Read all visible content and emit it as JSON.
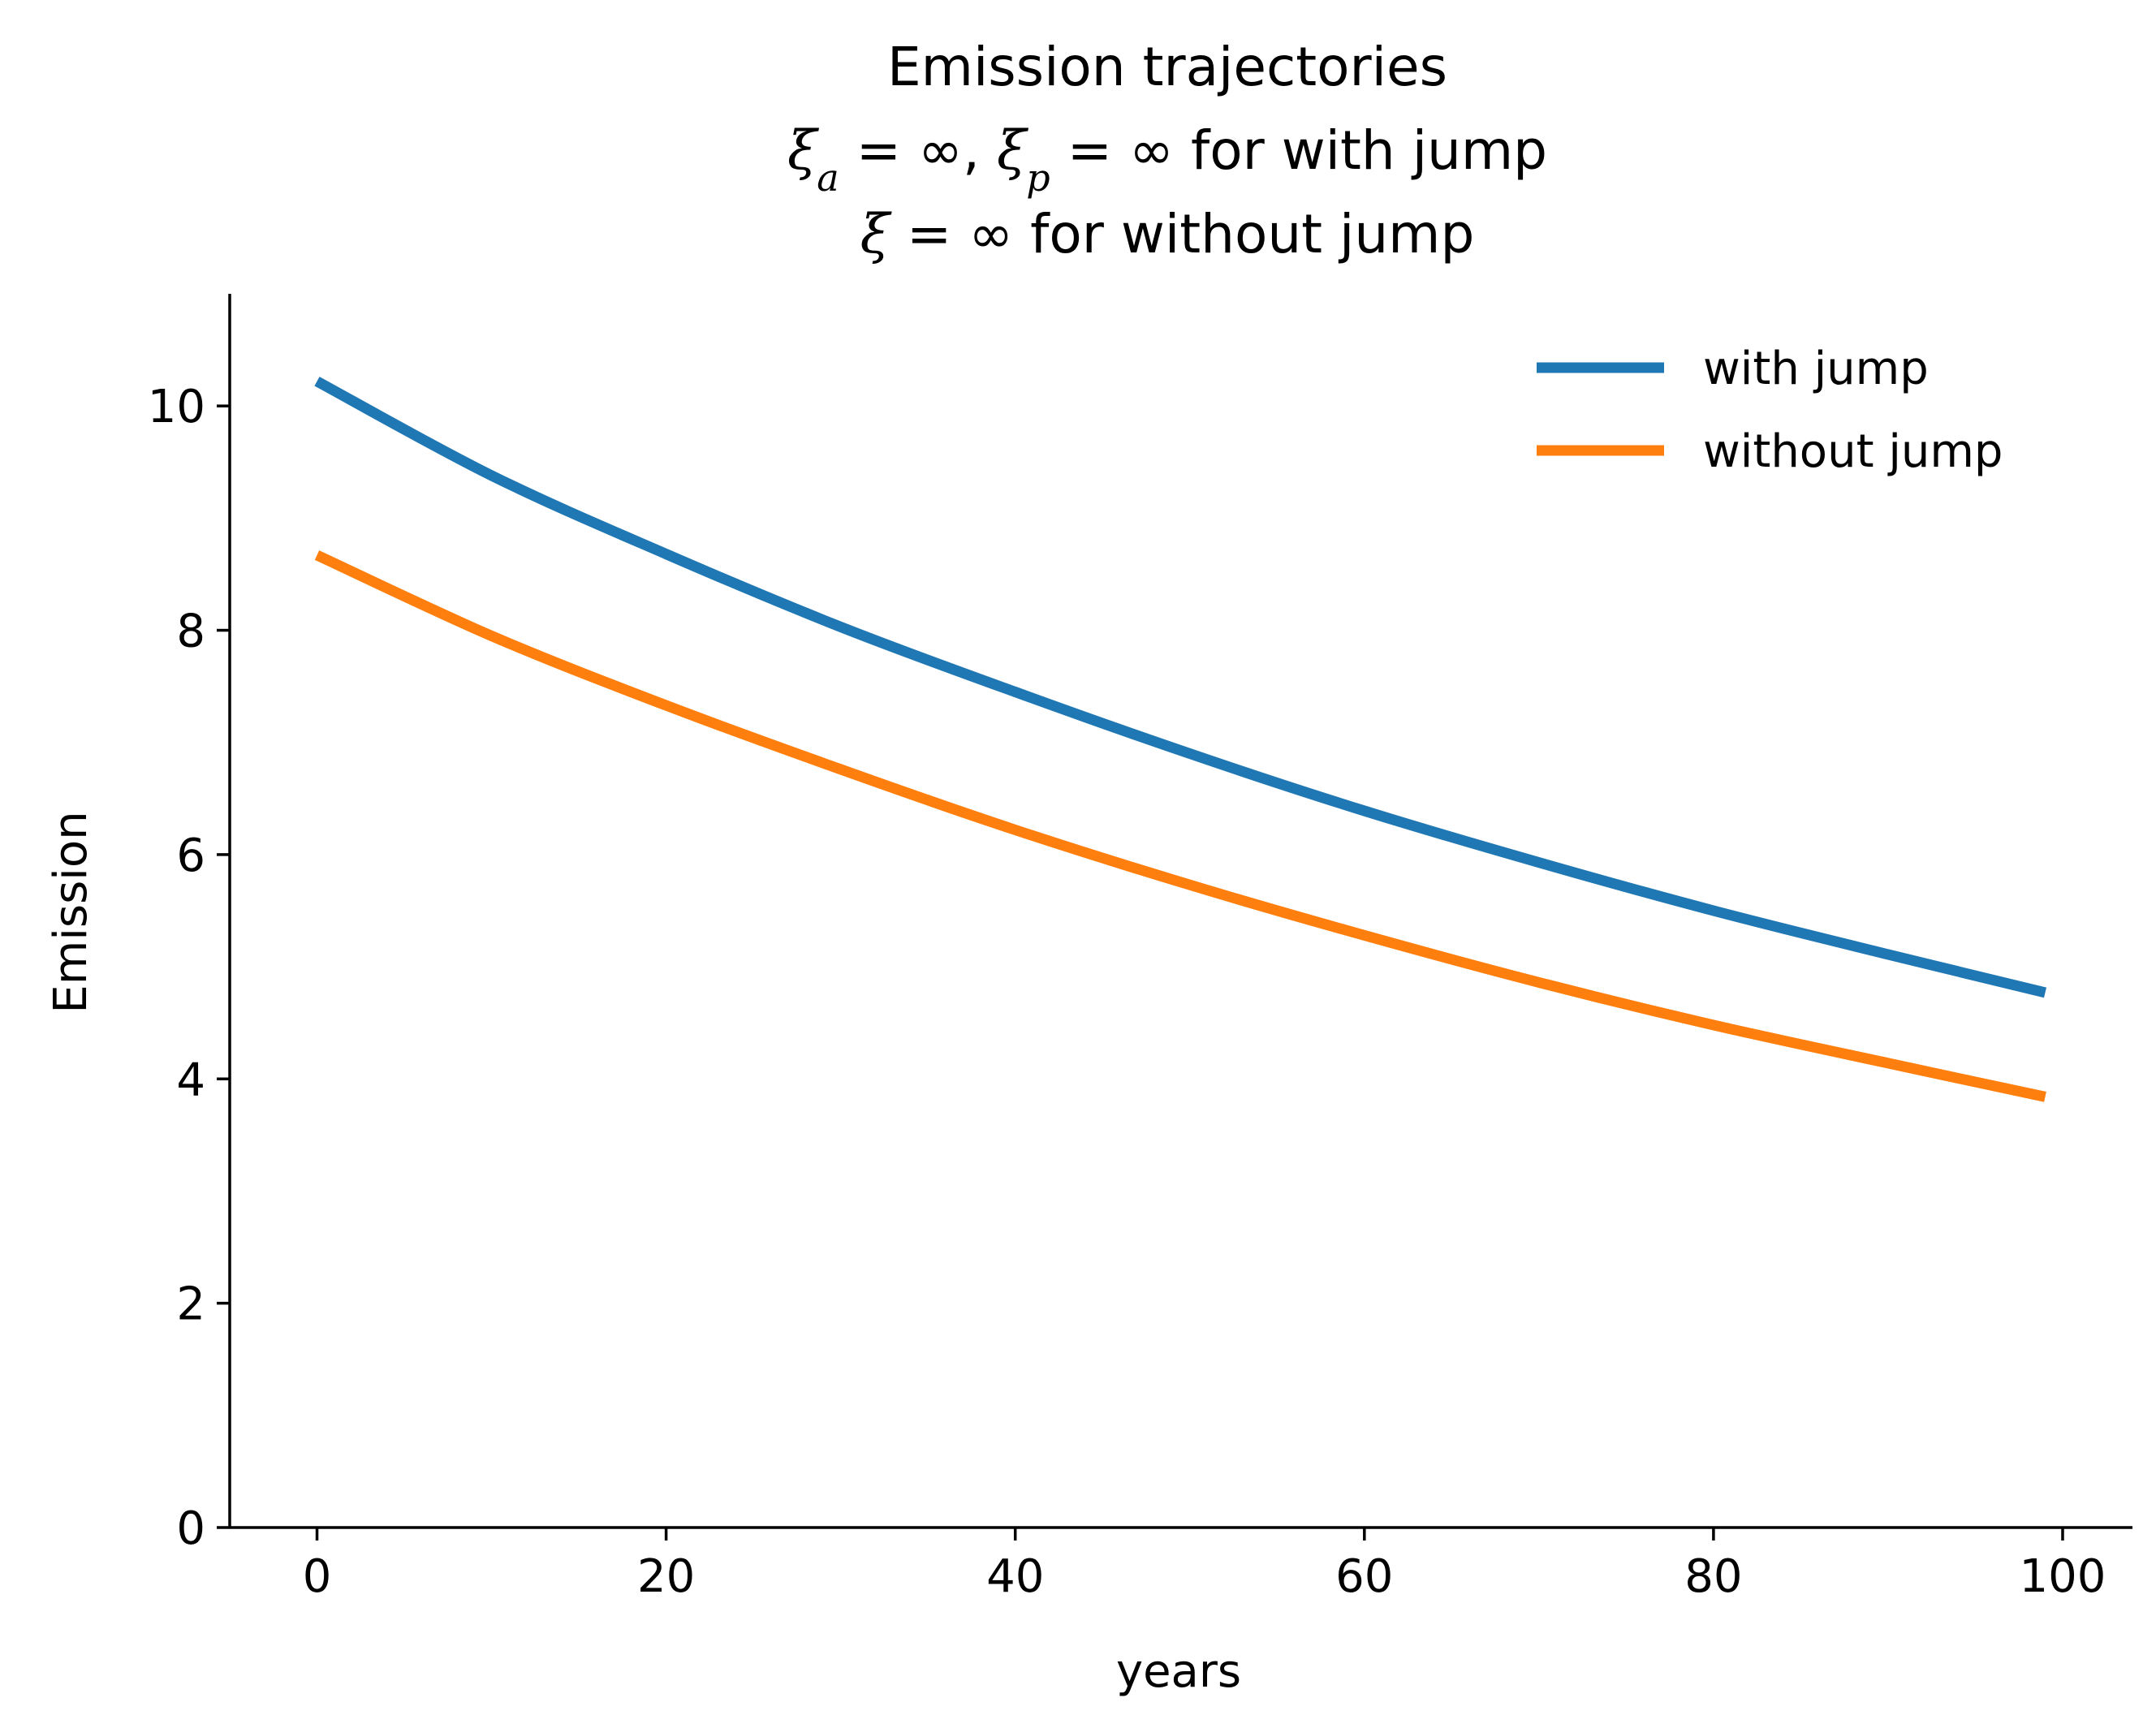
{
  "chart_data": {
    "type": "line",
    "title": {
      "line1": "Emission trajectories",
      "line2": "ξa = ∞, ξp = ∞ for with jump",
      "line3": "ξ = ∞ for without jump"
    },
    "xlabel": "years",
    "ylabel": "Emission",
    "xlim": [
      -5,
      104
    ],
    "ylim": [
      0,
      11
    ],
    "xticks": [
      0,
      20,
      40,
      60,
      80,
      100
    ],
    "yticks": [
      0,
      2,
      4,
      6,
      8,
      10
    ],
    "grid": false,
    "legend_position": "top-right",
    "x": [
      0,
      10,
      20,
      30,
      40,
      50,
      60,
      70,
      80,
      90,
      99
    ],
    "series": [
      {
        "name": "with jump",
        "color": "#1f77b4",
        "values": [
          10.22,
          9.38,
          8.68,
          8.03,
          7.45,
          6.9,
          6.39,
          5.93,
          5.5,
          5.11,
          4.77
        ]
      },
      {
        "name": "without jump",
        "color": "#ff7f0e",
        "values": [
          8.67,
          7.95,
          7.33,
          6.76,
          6.22,
          5.73,
          5.28,
          4.86,
          4.48,
          4.14,
          3.84
        ]
      }
    ]
  }
}
